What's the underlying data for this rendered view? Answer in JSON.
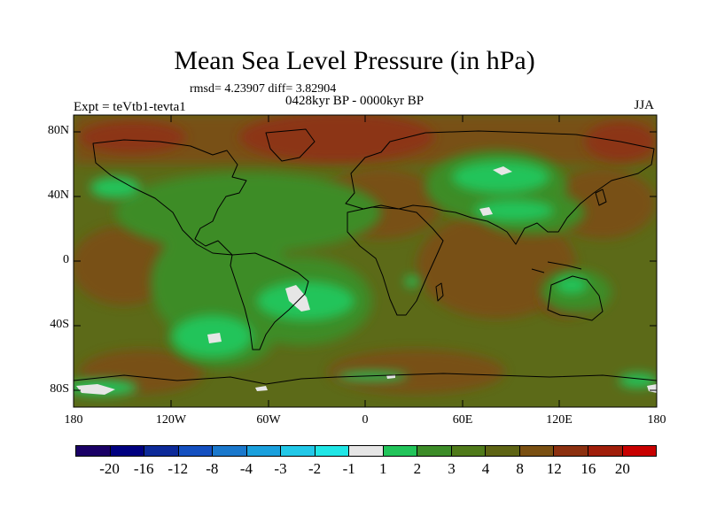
{
  "title": "Mean Sea Level Pressure (in hPa)",
  "stats": "rmsd= 4.23907  diff= 3.82904",
  "period": "0428kyr BP - 0000kyr BP",
  "experiment": "Expt = teVtb1-tevta1",
  "season": "JJA",
  "axes": {
    "y_ticks": [
      "80N",
      "40N",
      "0",
      "40S",
      "80S"
    ],
    "x_ticks": [
      "180",
      "120W",
      "60W",
      "0",
      "60E",
      "120E",
      "180"
    ]
  },
  "colorbar": {
    "labels": [
      "-20",
      "-16",
      "-12",
      "-8",
      "-4",
      "-3",
      "-2",
      "-1",
      "1",
      "2",
      "3",
      "4",
      "8",
      "12",
      "16",
      "20"
    ],
    "colors": [
      "#1a0066",
      "#000080",
      "#0d2a99",
      "#1450c0",
      "#1a78cc",
      "#1aa0dd",
      "#22c8e8",
      "#20e6e6",
      "#e6e6e6",
      "#22c45a",
      "#3c8c28",
      "#4f7a1a",
      "#5e6414",
      "#7a5012",
      "#8c3010",
      "#a01e0a",
      "#c80000"
    ]
  },
  "colors": {
    "ocean_base": "#5c6a18",
    "land_green": "#3c8c28",
    "bright_green": "#22c45a",
    "brown": "#7a5012",
    "dark_brown": "#8c3418",
    "white": "#e6e6e6"
  }
}
